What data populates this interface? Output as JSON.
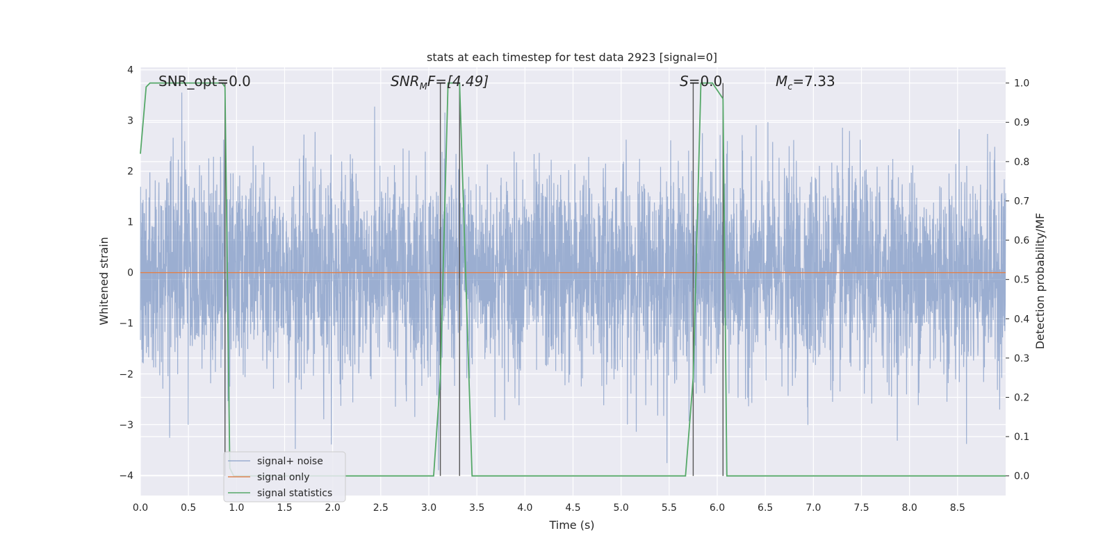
{
  "chart_data": {
    "type": "line",
    "title": "stats at each timestep for test data 2923 [signal=0]",
    "xlabel": "Time (s)",
    "ylabel": "Whitened strain",
    "y2label": "Detection probability/MF",
    "xlim": [
      0,
      9.0
    ],
    "ylim": [
      -4.4,
      4.05
    ],
    "y2lim": [
      -0.05,
      1.04
    ],
    "x_ticks": [
      "0.0",
      "0.5",
      "1.0",
      "1.5",
      "2.0",
      "2.5",
      "3.0",
      "3.5",
      "4.0",
      "4.5",
      "5.0",
      "5.5",
      "6.0",
      "6.5",
      "7.0",
      "7.5",
      "8.0",
      "8.5"
    ],
    "y_ticks": [
      "4",
      "3",
      "2",
      "1",
      "0",
      "−1",
      "−2",
      "−3",
      "−4"
    ],
    "y2_ticks": [
      "1.0",
      "0.9",
      "0.8",
      "0.7",
      "0.6",
      "0.5",
      "0.4",
      "0.3",
      "0.2",
      "0.1",
      "0.0"
    ],
    "grid": true,
    "legend_position": "lower-left",
    "annotations": {
      "snr_opt": "SNR_opt=0.0",
      "snr_mf_prefix": "SNR",
      "snr_mf_sub": "M",
      "snr_mf_suffix": "F=[4.49]",
      "s_prefix": "S",
      "s_suffix": "=0.0",
      "mc_prefix": "M",
      "mc_sub": "c",
      "mc_suffix": "=7.33"
    },
    "vertical_markers": [
      0.88,
      3.12,
      3.32,
      5.75,
      6.06
    ],
    "series": [
      {
        "name": "signal+ noise",
        "color": "#4c72b0",
        "kind": "noise",
        "typical_amplitude": 1.0,
        "peak_range": [
          -3.9,
          3.7
        ]
      },
      {
        "name": "signal only",
        "color": "#dd8452",
        "kind": "constant",
        "value": 0.0
      },
      {
        "name": "signal statistics",
        "color": "#55a868",
        "axis": "right",
        "x": [
          0.0,
          0.06,
          0.1,
          0.85,
          0.88,
          0.93,
          0.97,
          1.0,
          3.05,
          3.12,
          3.2,
          3.32,
          3.45,
          3.7,
          5.67,
          5.75,
          5.83,
          5.95,
          6.06,
          6.1,
          6.3,
          6.4,
          9.0
        ],
        "y": [
          0.82,
          0.99,
          1.0,
          1.0,
          0.99,
          0.02,
          0.0,
          0.0,
          0.0,
          0.25,
          1.0,
          1.0,
          0.0,
          0.0,
          0.0,
          0.25,
          1.0,
          1.0,
          0.96,
          0.0,
          0.0,
          0.0,
          0.0
        ]
      }
    ]
  }
}
